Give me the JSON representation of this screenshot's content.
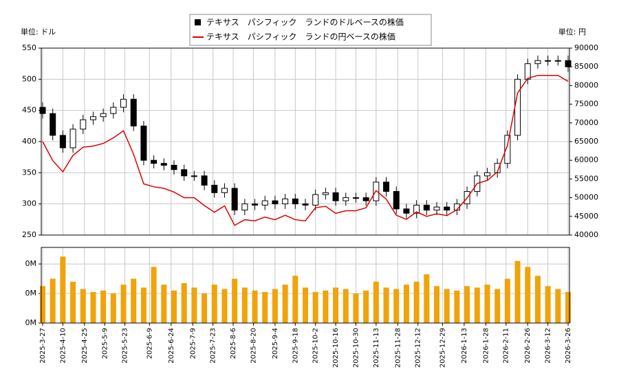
{
  "chart_data": [
    {
      "type": "candlestick",
      "ylabel": "単位: ドル",
      "y2label": "単位: 円",
      "x": [
        "2025-3-27",
        "2025-4-3",
        "2025-4-10",
        "2025-4-17",
        "2025-4-24",
        "2025-5-1",
        "2025-5-8",
        "2025-5-15",
        "2025-5-22",
        "2025-5-29",
        "2025-6-5",
        "2025-6-12",
        "2025-6-19",
        "2025-6-26",
        "2025-7-3",
        "2025-7-10",
        "2025-7-17",
        "2025-7-24",
        "2025-7-31",
        "2025-8-7",
        "2025-8-14",
        "2025-8-21",
        "2025-8-28",
        "2025-9-4",
        "2025-9-11",
        "2025-9-18",
        "2025-9-25",
        "2025-10-2",
        "2025-10-9",
        "2025-10-16",
        "2025-10-23",
        "2025-10-30",
        "2025-11-6",
        "2025-11-13",
        "2025-11-20",
        "2025-11-27",
        "2025-12-4",
        "2025-12-11",
        "2025-12-18",
        "2025-12-25",
        "2026-1-1",
        "2026-1-8",
        "2026-1-15",
        "2026-1-22",
        "2026-1-29",
        "2026-2-5",
        "2026-2-12",
        "2026-2-19",
        "2026-2-26",
        "2026-3-5",
        "2026-3-12",
        "2026-3-19",
        "2026-3-26"
      ],
      "series": [
        {
          "name": "テキサス　パシフィック　ランドのドルベースの株価",
          "color": "#000000",
          "open": [
            455,
            445,
            410,
            390,
            420,
            435,
            440,
            445,
            455,
            468,
            425,
            370,
            365,
            362,
            355,
            345,
            345,
            330,
            318,
            325,
            290,
            300,
            298,
            305,
            300,
            308,
            300,
            298,
            315,
            318,
            305,
            310,
            310,
            305,
            335,
            320,
            292,
            285,
            298,
            290,
            295,
            290,
            300,
            320,
            345,
            350,
            365,
            410,
            500,
            525,
            530,
            530,
            530
          ],
          "high": [
            463,
            453,
            418,
            428,
            443,
            448,
            453,
            463,
            476,
            476,
            433,
            378,
            373,
            370,
            363,
            353,
            353,
            338,
            333,
            333,
            308,
            308,
            313,
            313,
            316,
            316,
            308,
            323,
            326,
            326,
            318,
            318,
            318,
            343,
            343,
            328,
            300,
            306,
            306,
            303,
            303,
            308,
            328,
            353,
            358,
            373,
            418,
            508,
            533,
            538,
            538,
            538,
            538
          ],
          "low": [
            437,
            402,
            382,
            382,
            412,
            427,
            432,
            437,
            447,
            417,
            362,
            357,
            354,
            347,
            337,
            337,
            322,
            310,
            310,
            282,
            282,
            290,
            290,
            292,
            292,
            292,
            290,
            290,
            307,
            297,
            297,
            302,
            297,
            297,
            312,
            284,
            277,
            277,
            282,
            282,
            282,
            282,
            292,
            312,
            337,
            342,
            357,
            402,
            492,
            517,
            522,
            522,
            512
          ],
          "close": [
            445,
            410,
            390,
            420,
            435,
            440,
            445,
            455,
            468,
            425,
            370,
            365,
            362,
            355,
            345,
            345,
            330,
            318,
            325,
            290,
            300,
            298,
            305,
            300,
            308,
            300,
            298,
            315,
            318,
            305,
            310,
            310,
            305,
            335,
            320,
            292,
            285,
            298,
            290,
            295,
            290,
            300,
            320,
            345,
            350,
            365,
            410,
            500,
            525,
            530,
            530,
            530,
            520
          ]
        },
        {
          "name": "テキサス　パシフィック　ランドの円ベースの株価",
          "color": "#dd0000",
          "axis": "y2",
          "values": [
            65000,
            59900,
            56900,
            61300,
            63500,
            63800,
            64500,
            66000,
            67900,
            61600,
            53700,
            52900,
            52500,
            51500,
            50000,
            50000,
            47900,
            46100,
            47800,
            42600,
            44100,
            43800,
            44800,
            44100,
            45300,
            44100,
            43800,
            47300,
            47700,
            45800,
            46500,
            46500,
            47300,
            51900,
            49600,
            45300,
            44200,
            46200,
            45000,
            45700,
            45200,
            46800,
            49900,
            53800,
            54600,
            56900,
            64000,
            78000,
            81900,
            82700,
            82700,
            82700,
            81100
          ]
        }
      ],
      "ylim": [
        250,
        550
      ],
      "yticks": [
        250,
        300,
        350,
        400,
        450,
        500,
        550
      ],
      "y2lim": [
        40000,
        90000
      ],
      "y2ticks": [
        40000,
        45000,
        50000,
        55000,
        60000,
        65000,
        70000,
        75000,
        80000,
        85000,
        90000
      ],
      "grid": true
    },
    {
      "type": "bar",
      "color": "#f0a30a",
      "x": [
        "2025-3-27",
        "2025-4-3",
        "2025-4-10",
        "2025-4-17",
        "2025-4-24",
        "2025-5-1",
        "2025-5-8",
        "2025-5-15",
        "2025-5-22",
        "2025-5-29",
        "2025-6-5",
        "2025-6-12",
        "2025-6-19",
        "2025-6-26",
        "2025-7-3",
        "2025-7-10",
        "2025-7-17",
        "2025-7-24",
        "2025-7-31",
        "2025-8-7",
        "2025-8-14",
        "2025-8-21",
        "2025-8-28",
        "2025-9-4",
        "2025-9-11",
        "2025-9-18",
        "2025-9-25",
        "2025-10-2",
        "2025-10-9",
        "2025-10-16",
        "2025-10-23",
        "2025-10-30",
        "2025-11-6",
        "2025-11-13",
        "2025-11-20",
        "2025-11-27",
        "2025-12-4",
        "2025-12-11",
        "2025-12-18",
        "2025-12-25",
        "2026-1-1",
        "2026-1-8",
        "2026-1-15",
        "2026-1-22",
        "2026-1-29",
        "2026-2-5",
        "2026-2-12",
        "2026-2-19",
        "2026-2-26",
        "2026-3-5",
        "2026-3-12",
        "2026-3-19",
        "2026-3-26"
      ],
      "values": [
        250000,
        300000,
        450000,
        280000,
        230000,
        210000,
        220000,
        200000,
        260000,
        300000,
        240000,
        380000,
        260000,
        220000,
        270000,
        240000,
        200000,
        260000,
        230000,
        300000,
        240000,
        220000,
        210000,
        230000,
        260000,
        320000,
        240000,
        210000,
        220000,
        240000,
        230000,
        200000,
        220000,
        280000,
        240000,
        230000,
        260000,
        280000,
        330000,
        250000,
        230000,
        220000,
        250000,
        240000,
        260000,
        230000,
        300000,
        420000,
        380000,
        320000,
        250000,
        230000,
        210000
      ],
      "ylim": [
        0,
        512000
      ],
      "yticks": [
        {
          "value": 0,
          "label": "0M"
        },
        {
          "value": 200000,
          "label": "0M"
        },
        {
          "value": 400000,
          "label": "0M"
        }
      ],
      "xlim": [
        "2025-3-27",
        "2026-3-26"
      ],
      "xticks": [
        "2025-3-27",
        "2025-4-10",
        "2025-4-25",
        "2025-5-9",
        "2025-5-23",
        "2025-6-9",
        "2025-6-24",
        "2025-7-9",
        "2025-7-23",
        "2025-8-6",
        "2025-8-20",
        "2025-9-4",
        "2025-9-18",
        "2025-10-2",
        "2025-10-16",
        "2025-10-30",
        "2025-11-13",
        "2025-11-28",
        "2025-12-12",
        "2025-12-29",
        "2026-1-13",
        "2026-1-28",
        "2026-2-11",
        "2026-2-26",
        "2026-3-12",
        "2026-3-26"
      ],
      "grid": true
    }
  ]
}
